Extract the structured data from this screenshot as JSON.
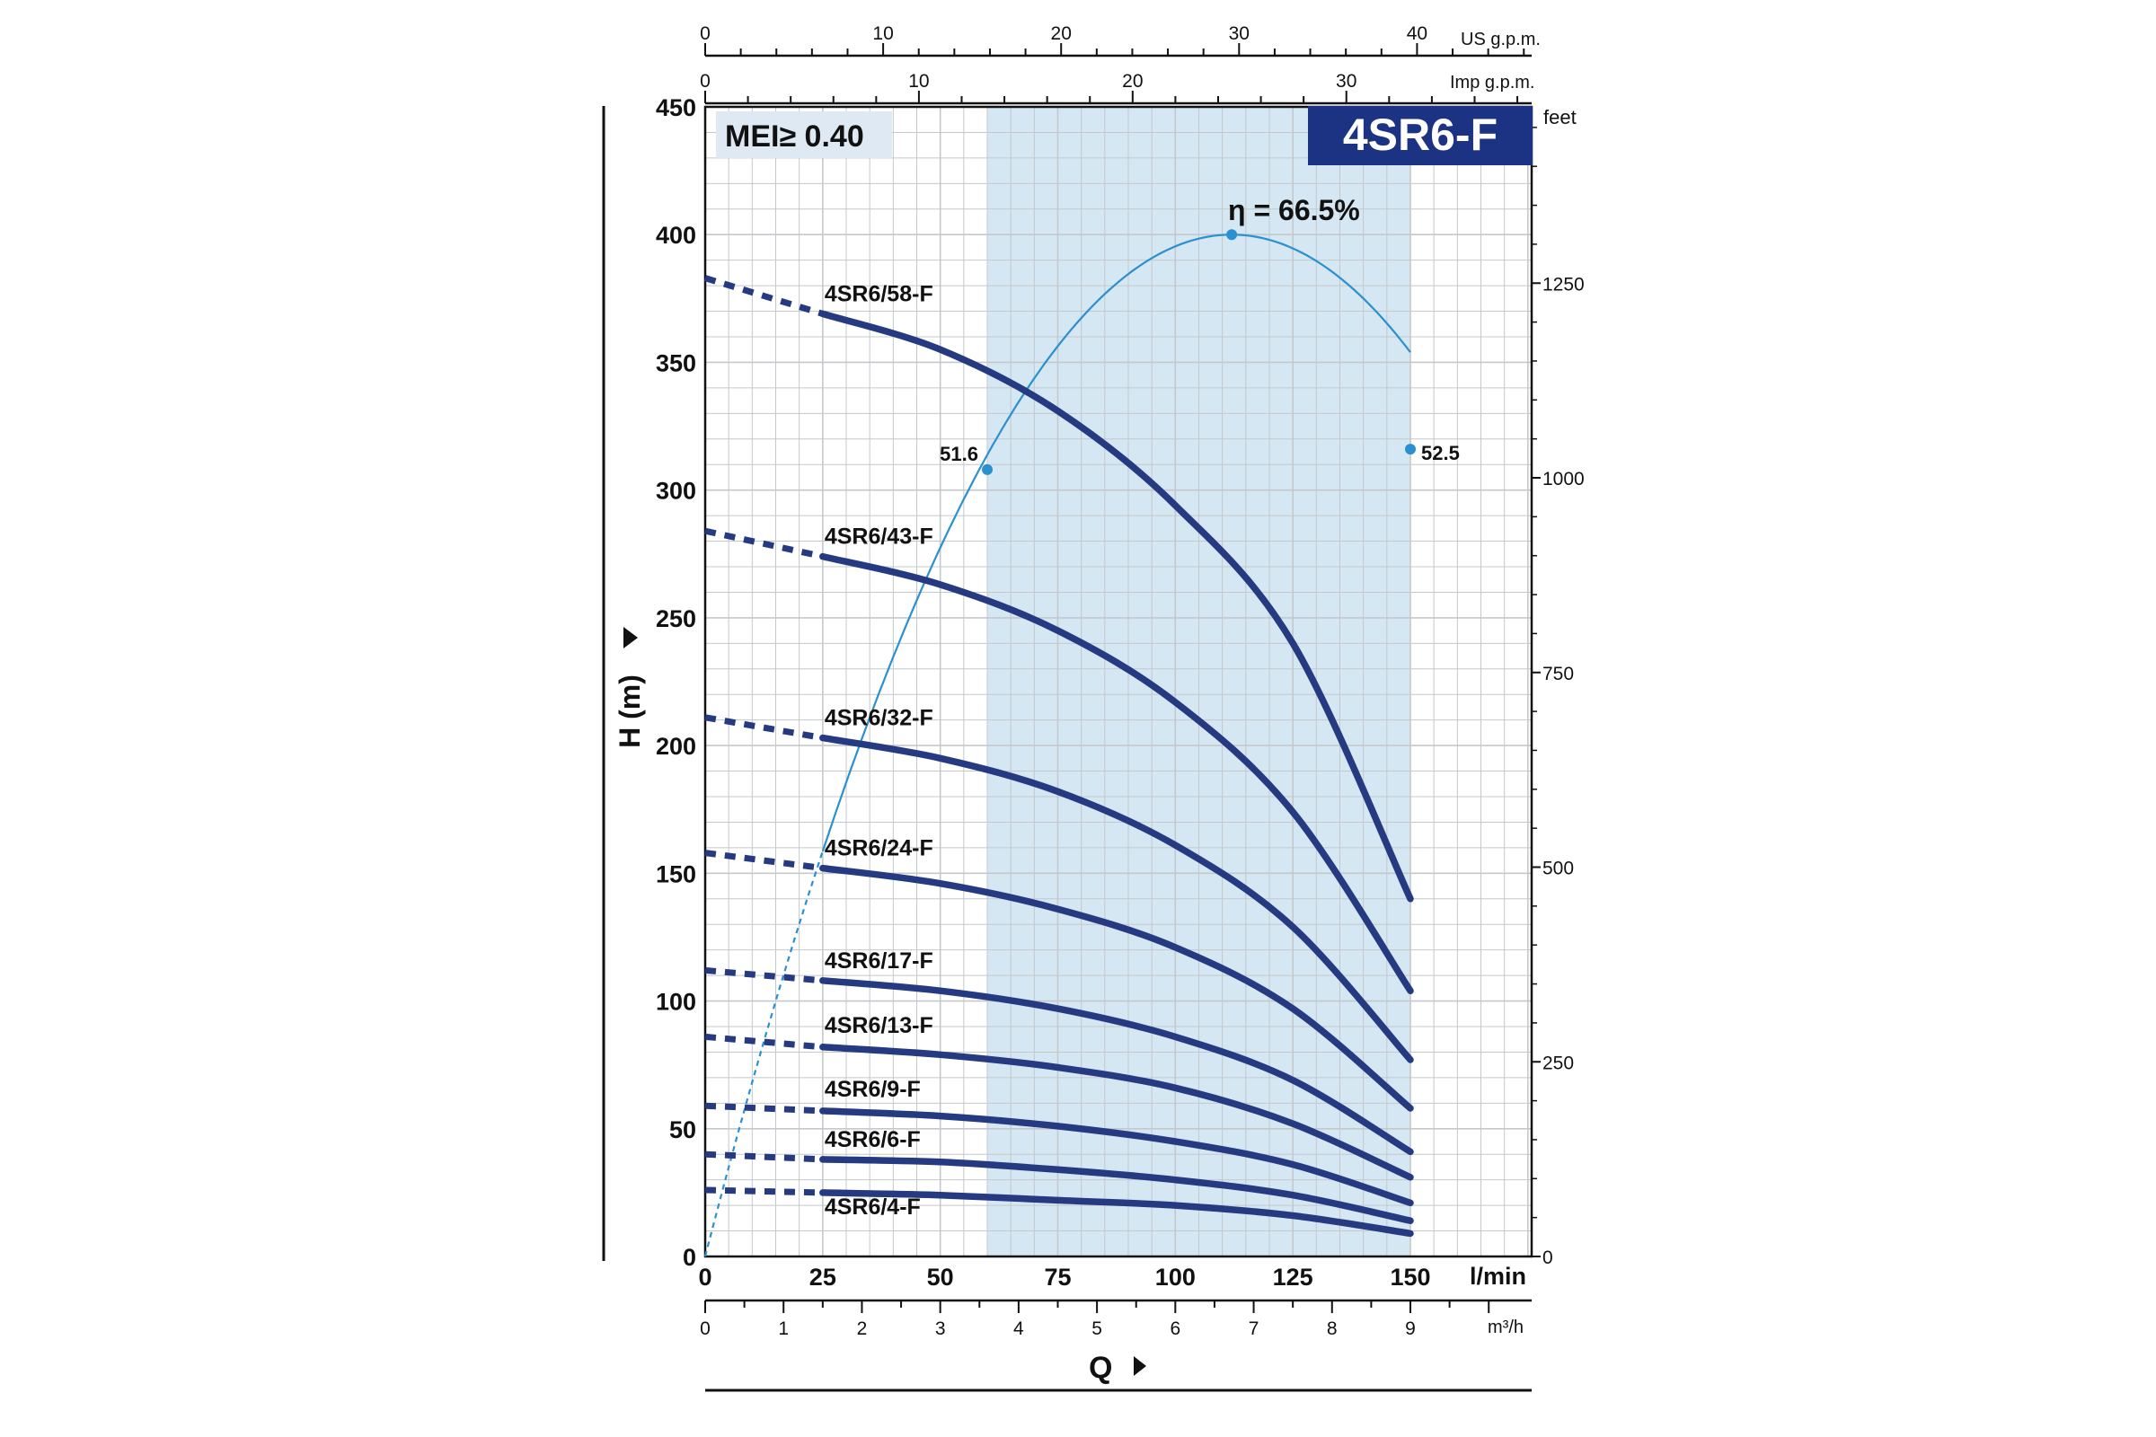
{
  "badge": "4SR6-F",
  "mei_label": "MEI≥ 0.40",
  "efficiency_label": "η = 66.5%",
  "colors": {
    "curve": "#253a80",
    "efficiency": "#2a90cf",
    "band_fill": "#d4e7f3",
    "grid": "#c4c8cc",
    "badge_bg": "#1c3282",
    "badge_text": "#ffffff",
    "mei_bg": "#dfe9f3"
  },
  "chart_data": {
    "type": "line",
    "title": "4SR6-F",
    "xlabel": "Q",
    "ylabel": "H (m)",
    "x_unit": "l/min",
    "x_unit_m3h": "m³/h",
    "ylabel_right": "feet",
    "top_axis_us_label": "US g.p.m.",
    "top_axis_imp_label": "Imp g.p.m.",
    "xlim": [
      0,
      150
    ],
    "ylim": [
      0,
      450
    ],
    "x_ticks": [
      0,
      25,
      50,
      75,
      100,
      125,
      150
    ],
    "y_ticks": [
      0,
      50,
      100,
      150,
      200,
      250,
      300,
      350,
      400,
      450
    ],
    "feet_ticks": [
      0,
      250,
      500,
      750,
      1000,
      1250
    ],
    "m3h_ticks": [
      0,
      1,
      2,
      3,
      4,
      5,
      6,
      7,
      8,
      9
    ],
    "us_gpm_ticks": [
      0,
      10,
      20,
      30,
      40
    ],
    "imp_gpm_ticks": [
      0,
      10,
      20,
      30
    ],
    "recommended_range": [
      60,
      150
    ],
    "grid": true,
    "series": [
      {
        "name": "4SR6/58-F",
        "dashed_to": 25,
        "points": [
          [
            0,
            383
          ],
          [
            25,
            369
          ],
          [
            50,
            355
          ],
          [
            75,
            331
          ],
          [
            100,
            294
          ],
          [
            125,
            240
          ],
          [
            150,
            140
          ]
        ]
      },
      {
        "name": "4SR6/43-F",
        "dashed_to": 25,
        "points": [
          [
            0,
            284
          ],
          [
            25,
            274
          ],
          [
            50,
            263
          ],
          [
            75,
            245
          ],
          [
            100,
            217
          ],
          [
            125,
            174
          ],
          [
            150,
            104
          ]
        ]
      },
      {
        "name": "4SR6/32-F",
        "dashed_to": 25,
        "points": [
          [
            0,
            211
          ],
          [
            25,
            203
          ],
          [
            50,
            195
          ],
          [
            75,
            182
          ],
          [
            100,
            161
          ],
          [
            125,
            129
          ],
          [
            150,
            77
          ]
        ]
      },
      {
        "name": "4SR6/24-F",
        "dashed_to": 25,
        "points": [
          [
            0,
            158
          ],
          [
            25,
            152
          ],
          [
            50,
            146
          ],
          [
            75,
            136
          ],
          [
            100,
            121
          ],
          [
            125,
            97
          ],
          [
            150,
            58
          ]
        ]
      },
      {
        "name": "4SR6/17-F",
        "dashed_to": 25,
        "points": [
          [
            0,
            112
          ],
          [
            25,
            108
          ],
          [
            50,
            104
          ],
          [
            75,
            97
          ],
          [
            100,
            86
          ],
          [
            125,
            69
          ],
          [
            150,
            41
          ]
        ]
      },
      {
        "name": "4SR6/13-F",
        "dashed_to": 25,
        "points": [
          [
            0,
            86
          ],
          [
            25,
            82
          ],
          [
            50,
            79
          ],
          [
            75,
            74
          ],
          [
            100,
            66
          ],
          [
            125,
            52
          ],
          [
            150,
            31
          ]
        ]
      },
      {
        "name": "4SR6/9-F",
        "dashed_to": 25,
        "points": [
          [
            0,
            59
          ],
          [
            25,
            57
          ],
          [
            50,
            55
          ],
          [
            75,
            51
          ],
          [
            100,
            45
          ],
          [
            125,
            36
          ],
          [
            150,
            21
          ]
        ]
      },
      {
        "name": "4SR6/6-F",
        "dashed_to": 25,
        "points": [
          [
            0,
            40
          ],
          [
            25,
            38
          ],
          [
            50,
            37
          ],
          [
            75,
            34
          ],
          [
            100,
            30
          ],
          [
            125,
            24
          ],
          [
            150,
            14
          ]
        ]
      },
      {
        "name": "4SR6/4-F",
        "dashed_to": 25,
        "points": [
          [
            0,
            26
          ],
          [
            25,
            25
          ],
          [
            50,
            24
          ],
          [
            75,
            22
          ],
          [
            100,
            20
          ],
          [
            125,
            16
          ],
          [
            150,
            9
          ]
        ]
      }
    ],
    "efficiency_curve": {
      "peak": {
        "x": 112,
        "y": 400
      },
      "solid_from": 25,
      "points": [
        [
          0,
          0
        ],
        [
          25,
          154
        ],
        [
          60,
          308
        ],
        [
          112,
          400
        ],
        [
          150,
          316
        ]
      ],
      "annotations": [
        {
          "label": "51.6",
          "x": 60,
          "y": 308
        },
        {
          "label": "52.5",
          "x": 150,
          "y": 316
        }
      ]
    }
  }
}
